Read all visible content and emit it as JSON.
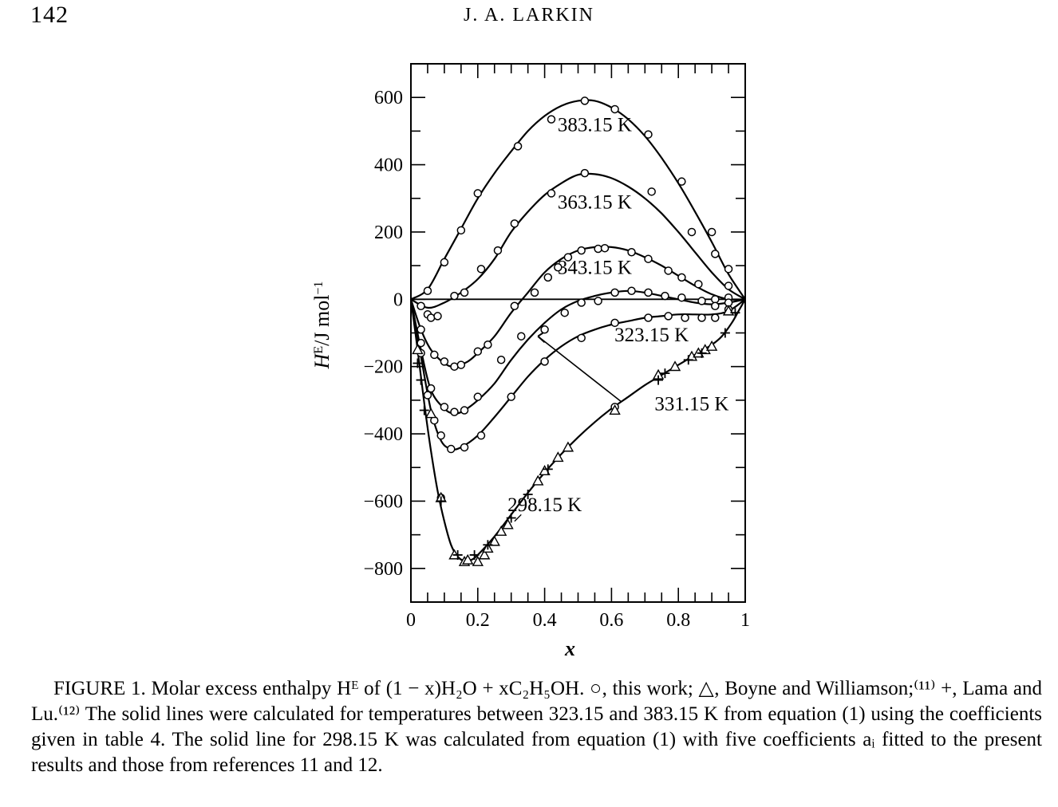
{
  "header": {
    "page_number": "142",
    "running_head": "J. A. LARKIN"
  },
  "chart_data": {
    "type": "line",
    "title": "",
    "xlabel": "x",
    "ylabel": "H^E/J mol^-1",
    "xlim": [
      0,
      1
    ],
    "ylim": [
      -900,
      700
    ],
    "x_ticks": [
      "0",
      "0.2",
      "0.4",
      "0.6",
      "0.8",
      "1"
    ],
    "y_ticks": [
      "600",
      "400",
      "200",
      "0",
      "-200",
      "-400",
      "-600",
      "-800"
    ],
    "grid": false,
    "series": [
      {
        "name": "383.15 K",
        "curve": [
          [
            0,
            0
          ],
          [
            0.05,
            30
          ],
          [
            0.1,
            120
          ],
          [
            0.15,
            210
          ],
          [
            0.2,
            300
          ],
          [
            0.25,
            375
          ],
          [
            0.3,
            440
          ],
          [
            0.35,
            500
          ],
          [
            0.4,
            545
          ],
          [
            0.45,
            575
          ],
          [
            0.5,
            590
          ],
          [
            0.55,
            590
          ],
          [
            0.6,
            570
          ],
          [
            0.65,
            535
          ],
          [
            0.7,
            485
          ],
          [
            0.75,
            420
          ],
          [
            0.8,
            345
          ],
          [
            0.85,
            260
          ],
          [
            0.9,
            170
          ],
          [
            0.95,
            75
          ],
          [
            1,
            0
          ]
        ],
        "circles": [
          [
            0.05,
            25
          ],
          [
            0.1,
            110
          ],
          [
            0.15,
            205
          ],
          [
            0.2,
            315
          ],
          [
            0.32,
            455
          ],
          [
            0.42,
            535
          ],
          [
            0.52,
            590
          ],
          [
            0.61,
            565
          ],
          [
            0.71,
            490
          ],
          [
            0.81,
            350
          ],
          [
            0.9,
            200
          ],
          [
            0.95,
            90
          ]
        ]
      },
      {
        "name": "363.15 K",
        "curve": [
          [
            0,
            0
          ],
          [
            0.05,
            -25
          ],
          [
            0.1,
            -10
          ],
          [
            0.15,
            20
          ],
          [
            0.2,
            60
          ],
          [
            0.25,
            120
          ],
          [
            0.3,
            200
          ],
          [
            0.35,
            260
          ],
          [
            0.4,
            310
          ],
          [
            0.45,
            345
          ],
          [
            0.5,
            370
          ],
          [
            0.55,
            372
          ],
          [
            0.6,
            360
          ],
          [
            0.65,
            335
          ],
          [
            0.7,
            300
          ],
          [
            0.75,
            255
          ],
          [
            0.8,
            200
          ],
          [
            0.85,
            140
          ],
          [
            0.9,
            80
          ],
          [
            0.95,
            30
          ],
          [
            1,
            0
          ]
        ],
        "circles": [
          [
            0.03,
            -20
          ],
          [
            0.05,
            -45
          ],
          [
            0.06,
            -55
          ],
          [
            0.08,
            -50
          ],
          [
            0.13,
            10
          ],
          [
            0.16,
            20
          ],
          [
            0.21,
            90
          ],
          [
            0.26,
            145
          ],
          [
            0.31,
            225
          ],
          [
            0.42,
            315
          ],
          [
            0.52,
            375
          ],
          [
            0.72,
            320
          ],
          [
            0.84,
            200
          ],
          [
            0.91,
            135
          ],
          [
            0.95,
            40
          ]
        ]
      },
      {
        "name": "343.15 K",
        "curve": [
          [
            0,
            0
          ],
          [
            0.03,
            -90
          ],
          [
            0.06,
            -150
          ],
          [
            0.1,
            -190
          ],
          [
            0.13,
            -200
          ],
          [
            0.17,
            -185
          ],
          [
            0.2,
            -160
          ],
          [
            0.25,
            -110
          ],
          [
            0.3,
            -40
          ],
          [
            0.35,
            20
          ],
          [
            0.4,
            80
          ],
          [
            0.45,
            120
          ],
          [
            0.5,
            145
          ],
          [
            0.55,
            155
          ],
          [
            0.6,
            155
          ],
          [
            0.65,
            145
          ],
          [
            0.7,
            125
          ],
          [
            0.75,
            100
          ],
          [
            0.8,
            70
          ],
          [
            0.85,
            40
          ],
          [
            0.9,
            15
          ],
          [
            0.95,
            0
          ],
          [
            1,
            0
          ]
        ],
        "circles": [
          [
            0.03,
            -90
          ],
          [
            0.07,
            -165
          ],
          [
            0.1,
            -185
          ],
          [
            0.13,
            -200
          ],
          [
            0.15,
            -195
          ],
          [
            0.2,
            -155
          ],
          [
            0.23,
            -135
          ],
          [
            0.31,
            -20
          ],
          [
            0.37,
            20
          ],
          [
            0.41,
            65
          ],
          [
            0.44,
            95
          ],
          [
            0.47,
            125
          ],
          [
            0.51,
            145
          ],
          [
            0.56,
            150
          ],
          [
            0.58,
            152
          ],
          [
            0.66,
            140
          ],
          [
            0.71,
            120
          ],
          [
            0.77,
            85
          ],
          [
            0.81,
            65
          ],
          [
            0.86,
            45
          ],
          [
            0.91,
            0
          ],
          [
            0.95,
            5
          ]
        ]
      },
      {
        "name": "323.15 K",
        "curve": [
          [
            0,
            0
          ],
          [
            0.03,
            -150
          ],
          [
            0.06,
            -270
          ],
          [
            0.1,
            -325
          ],
          [
            0.13,
            -340
          ],
          [
            0.16,
            -330
          ],
          [
            0.2,
            -300
          ],
          [
            0.25,
            -250
          ],
          [
            0.3,
            -180
          ],
          [
            0.35,
            -120
          ],
          [
            0.4,
            -70
          ],
          [
            0.45,
            -30
          ],
          [
            0.5,
            -5
          ],
          [
            0.55,
            10
          ],
          [
            0.6,
            20
          ],
          [
            0.65,
            25
          ],
          [
            0.7,
            20
          ],
          [
            0.75,
            10
          ],
          [
            0.8,
            0
          ],
          [
            0.85,
            -10
          ],
          [
            0.9,
            -15
          ],
          [
            0.95,
            -10
          ],
          [
            1,
            0
          ]
        ],
        "circles": [
          [
            0.03,
            -130
          ],
          [
            0.06,
            -265
          ],
          [
            0.1,
            -320
          ],
          [
            0.13,
            -335
          ],
          [
            0.16,
            -330
          ],
          [
            0.2,
            -290
          ],
          [
            0.27,
            -180
          ],
          [
            0.33,
            -110
          ],
          [
            0.4,
            -90
          ],
          [
            0.46,
            -40
          ],
          [
            0.51,
            -10
          ],
          [
            0.56,
            -5
          ],
          [
            0.61,
            20
          ],
          [
            0.66,
            25
          ],
          [
            0.71,
            20
          ],
          [
            0.76,
            10
          ],
          [
            0.81,
            5
          ],
          [
            0.87,
            -5
          ],
          [
            0.91,
            -20
          ],
          [
            0.95,
            -10
          ]
        ]
      },
      {
        "name": "331.15 K",
        "curve": [
          [
            0,
            0
          ],
          [
            0.03,
            -170
          ],
          [
            0.06,
            -330
          ],
          [
            0.09,
            -420
          ],
          [
            0.12,
            -445
          ],
          [
            0.15,
            -440
          ],
          [
            0.2,
            -405
          ],
          [
            0.25,
            -350
          ],
          [
            0.3,
            -290
          ],
          [
            0.35,
            -230
          ],
          [
            0.4,
            -180
          ],
          [
            0.45,
            -140
          ],
          [
            0.5,
            -110
          ],
          [
            0.55,
            -90
          ],
          [
            0.6,
            -75
          ],
          [
            0.65,
            -65
          ],
          [
            0.7,
            -55
          ],
          [
            0.75,
            -50
          ],
          [
            0.8,
            -45
          ],
          [
            0.85,
            -45
          ],
          [
            0.9,
            -45
          ],
          [
            0.95,
            -35
          ],
          [
            1,
            0
          ]
        ],
        "circles": [
          [
            0.03,
            -160
          ],
          [
            0.05,
            -285
          ],
          [
            0.07,
            -360
          ],
          [
            0.09,
            -405
          ],
          [
            0.12,
            -445
          ],
          [
            0.16,
            -440
          ],
          [
            0.21,
            -405
          ],
          [
            0.3,
            -290
          ],
          [
            0.4,
            -185
          ],
          [
            0.51,
            -115
          ],
          [
            0.61,
            -70
          ],
          [
            0.71,
            -55
          ],
          [
            0.77,
            -50
          ],
          [
            0.82,
            -55
          ],
          [
            0.87,
            -55
          ],
          [
            0.91,
            -55
          ],
          [
            0.95,
            -30
          ]
        ]
      },
      {
        "name": "298.15 K",
        "curve": [
          [
            0,
            0
          ],
          [
            0.02,
            -150
          ],
          [
            0.04,
            -310
          ],
          [
            0.06,
            -450
          ],
          [
            0.08,
            -570
          ],
          [
            0.1,
            -660
          ],
          [
            0.12,
            -730
          ],
          [
            0.14,
            -765
          ],
          [
            0.16,
            -778
          ],
          [
            0.18,
            -775
          ],
          [
            0.2,
            -760
          ],
          [
            0.25,
            -705
          ],
          [
            0.3,
            -640
          ],
          [
            0.35,
            -575
          ],
          [
            0.4,
            -515
          ],
          [
            0.45,
            -460
          ],
          [
            0.5,
            -410
          ],
          [
            0.55,
            -365
          ],
          [
            0.6,
            -325
          ],
          [
            0.65,
            -290
          ],
          [
            0.7,
            -255
          ],
          [
            0.75,
            -225
          ],
          [
            0.8,
            -195
          ],
          [
            0.85,
            -165
          ],
          [
            0.9,
            -135
          ],
          [
            0.93,
            -110
          ],
          [
            0.96,
            -70
          ],
          [
            0.98,
            -35
          ],
          [
            1,
            0
          ]
        ],
        "circles": [
          [
            0.09,
            -590
          ],
          [
            0.61,
            -320
          ]
        ],
        "triangles": [
          [
            0.02,
            -150
          ],
          [
            0.06,
            -340
          ],
          [
            0.09,
            -590
          ],
          [
            0.13,
            -760
          ],
          [
            0.16,
            -780
          ],
          [
            0.17,
            -775
          ],
          [
            0.2,
            -780
          ],
          [
            0.22,
            -760
          ],
          [
            0.23,
            -740
          ],
          [
            0.25,
            -720
          ],
          [
            0.27,
            -690
          ],
          [
            0.29,
            -670
          ],
          [
            0.38,
            -540
          ],
          [
            0.4,
            -510
          ],
          [
            0.44,
            -470
          ],
          [
            0.47,
            -440
          ],
          [
            0.61,
            -330
          ],
          [
            0.74,
            -225
          ],
          [
            0.79,
            -200
          ],
          [
            0.84,
            -170
          ],
          [
            0.86,
            -160
          ],
          [
            0.88,
            -150
          ],
          [
            0.9,
            -140
          ],
          [
            0.95,
            -35
          ]
        ],
        "plus": [
          [
            0.02,
            -190
          ],
          [
            0.03,
            -240
          ],
          [
            0.04,
            -330
          ],
          [
            0.09,
            -600
          ],
          [
            0.14,
            -760
          ],
          [
            0.19,
            -760
          ],
          [
            0.23,
            -730
          ],
          [
            0.3,
            -650
          ],
          [
            0.35,
            -580
          ],
          [
            0.41,
            -505
          ],
          [
            0.74,
            -240
          ],
          [
            0.76,
            -220
          ],
          [
            0.83,
            -180
          ],
          [
            0.87,
            -160
          ],
          [
            0.94,
            -100
          ],
          [
            0.97,
            -40
          ]
        ]
      }
    ],
    "annotations": [
      {
        "text": "383.15 K",
        "at": [
          0.55,
          500
        ]
      },
      {
        "text": "363.15 K",
        "at": [
          0.55,
          270
        ]
      },
      {
        "text": "343.15 K",
        "at": [
          0.55,
          75
        ]
      },
      {
        "text": "323.15 K",
        "at": [
          0.72,
          -125
        ]
      },
      {
        "text": "331.15 K",
        "at": [
          0.84,
          -330
        ]
      },
      {
        "text": "298.15 K",
        "at": [
          0.4,
          -630
        ]
      }
    ]
  },
  "caption": {
    "text": "FIGURE 1. Molar excess enthalpy Hᴱ of (1 − x)H₂O + xC₂H₅OH. ○, this work; △, Boyne and Williamson;⁽¹¹⁾ +, Lama and Lu.⁽¹²⁾ The solid lines were calculated for temperatures between 323.15 and 383.15 K from equation (1) using the coefficients given in table 4. The solid line for 298.15 K was calculated from equation (1) with five coefficients aᵢ fitted to the present results and those from references 11 and 12."
  }
}
